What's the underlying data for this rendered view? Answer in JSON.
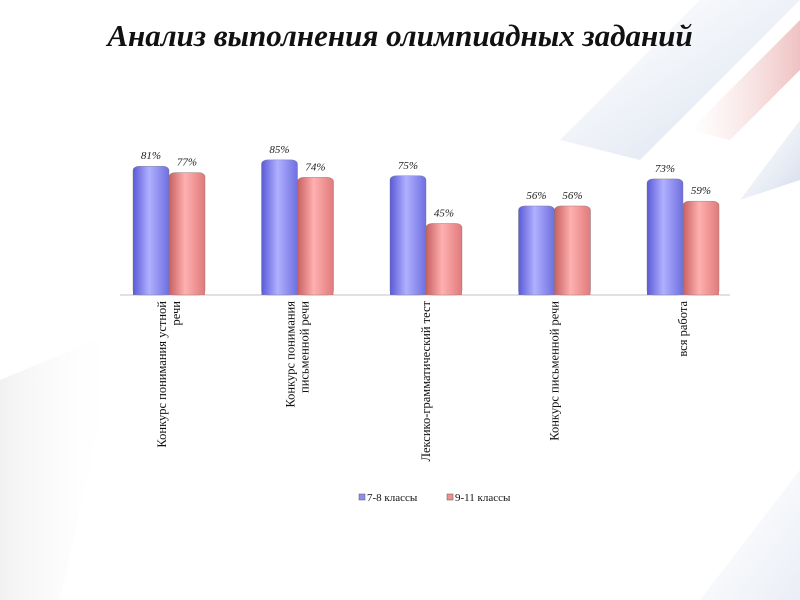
{
  "title": "Анализ выполнения олимпиадных заданий",
  "chart_data": {
    "type": "bar",
    "categories": [
      [
        "Конкурс понимания устной",
        "речи"
      ],
      [
        "Конкурс понимания",
        "письменной речи"
      ],
      [
        "Лексико-грамматический тест"
      ],
      [
        "Конкурс письменной речи"
      ],
      [
        "вся работа"
      ]
    ],
    "series": [
      {
        "name": "7-8 классы",
        "values": [
          81,
          85,
          75,
          56,
          73
        ],
        "color": "#8f8ff0"
      },
      {
        "name": "9-11 классы",
        "values": [
          77,
          74,
          45,
          56,
          59
        ],
        "color": "#f09090"
      }
    ],
    "value_suffix": "%",
    "ylim": [
      0,
      100
    ],
    "grid": false,
    "legend": "bottom"
  }
}
